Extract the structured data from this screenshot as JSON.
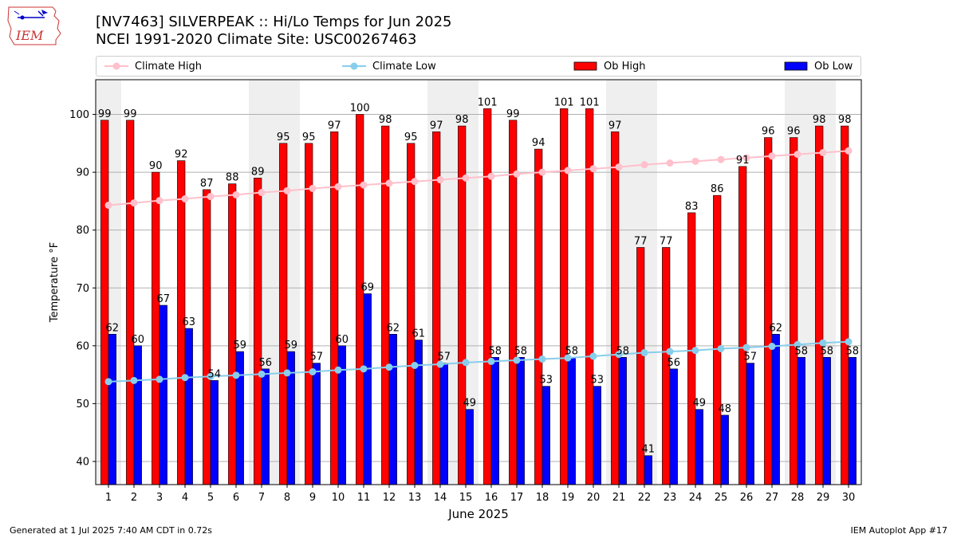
{
  "header": {
    "title_line1": "[NV7463] SILVERPEAK :: Hi/Lo Temps for Jun 2025",
    "title_line2": "NCEI 1991-2020 Climate Site: USC00267463",
    "logo_text": "IEM"
  },
  "footer": {
    "generated": "Generated at 1 Jul 2025 7:40 AM CDT in 0.72s",
    "app": "IEM Autoplot App #17"
  },
  "legend": {
    "climate_high": "Climate High",
    "climate_low": "Climate Low",
    "ob_high": "Ob High",
    "ob_low": "Ob Low"
  },
  "colors": {
    "ob_high": "#ff0000",
    "ob_low": "#0000ff",
    "climate_high": "#ffc0cb",
    "climate_low": "#87ceeb",
    "weekend_shade": "#efefef",
    "grid": "#b0b0b0"
  },
  "chart_data": {
    "type": "bar",
    "xlabel": "June 2025",
    "ylabel": "Temperature °F",
    "ylim": [
      36,
      106
    ],
    "yticks": [
      40,
      50,
      60,
      70,
      80,
      90,
      100
    ],
    "grid": "horizontal",
    "legend_position": "top",
    "shaded_weekend_days": [
      1,
      7,
      8,
      14,
      15,
      21,
      22,
      28,
      29
    ],
    "categories": [
      "1",
      "2",
      "3",
      "4",
      "5",
      "6",
      "7",
      "8",
      "9",
      "10",
      "11",
      "12",
      "13",
      "14",
      "15",
      "16",
      "17",
      "18",
      "19",
      "20",
      "21",
      "22",
      "23",
      "24",
      "25",
      "26",
      "27",
      "28",
      "29",
      "30"
    ],
    "series": [
      {
        "name": "Ob High",
        "type": "bar",
        "values": [
          99,
          99,
          90,
          92,
          87,
          88,
          89,
          95,
          95,
          97,
          100,
          98,
          95,
          97,
          98,
          101,
          99,
          94,
          101,
          101,
          97,
          77,
          77,
          83,
          86,
          91,
          96,
          96,
          98,
          98
        ]
      },
      {
        "name": "Ob Low",
        "type": "bar",
        "values": [
          62,
          60,
          67,
          63,
          54,
          59,
          56,
          59,
          57,
          60,
          69,
          62,
          61,
          57,
          49,
          58,
          58,
          53,
          58,
          53,
          58,
          41,
          56,
          49,
          48,
          57,
          62,
          58,
          58,
          58
        ]
      },
      {
        "name": "Climate High",
        "type": "line",
        "values": [
          84.3,
          84.7,
          85.1,
          85.4,
          85.8,
          86.1,
          86.5,
          86.8,
          87.2,
          87.5,
          87.8,
          88.1,
          88.4,
          88.7,
          89.0,
          89.3,
          89.7,
          90.0,
          90.3,
          90.6,
          90.9,
          91.3,
          91.6,
          91.9,
          92.2,
          92.5,
          92.8,
          93.1,
          93.4,
          93.7
        ]
      },
      {
        "name": "Climate Low",
        "type": "line",
        "values": [
          53.8,
          54.0,
          54.2,
          54.5,
          54.7,
          54.9,
          55.1,
          55.3,
          55.5,
          55.8,
          56.0,
          56.3,
          56.6,
          56.8,
          57.1,
          57.3,
          57.5,
          57.7,
          57.9,
          58.2,
          58.5,
          58.8,
          59.0,
          59.2,
          59.5,
          59.7,
          59.9,
          60.2,
          60.5,
          60.7
        ]
      }
    ]
  }
}
